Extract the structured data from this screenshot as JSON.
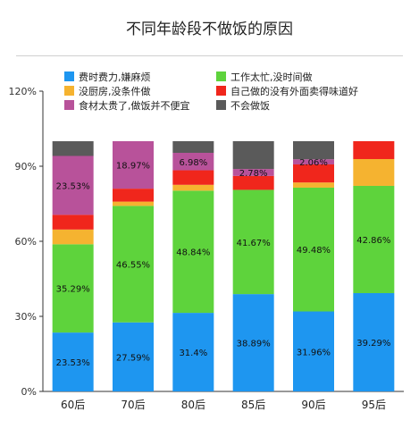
{
  "chart_data": {
    "type": "bar",
    "stacked": true,
    "title": "不同年龄段不做饭的原因",
    "categories": [
      "60后",
      "70后",
      "80后",
      "85后",
      "90后",
      "95后"
    ],
    "y_ticks": [
      "0%",
      "30%",
      "60%",
      "90%",
      "120%"
    ],
    "ylim": [
      0,
      120
    ],
    "grid": false,
    "legend_position": "top",
    "series": [
      {
        "name": "费时费力,嫌麻烦",
        "color": "#1e96f0",
        "values": [
          23.53,
          27.59,
          31.4,
          38.89,
          31.96,
          39.29
        ],
        "labels": [
          "23.53%",
          "27.59%",
          "31.4%",
          "38.89%",
          "31.96%",
          "39.29%"
        ]
      },
      {
        "name": "工作太忙,没时间做",
        "color": "#5ed33c",
        "values": [
          35.29,
          46.55,
          48.84,
          41.67,
          49.48,
          42.86
        ],
        "labels": [
          "35.29%",
          "46.55%",
          "48.84%",
          "41.67%",
          "49.48%",
          "42.86%"
        ]
      },
      {
        "name": "没厨房,没条件做",
        "color": "#f5b330",
        "values": [
          5.88,
          1.72,
          2.33,
          0,
          2.06,
          10.71
        ],
        "labels": [
          "",
          "",
          "",
          "",
          "",
          ""
        ]
      },
      {
        "name": "自己做的没有外面卖得味道好",
        "color": "#f0261c",
        "values": [
          5.88,
          5.17,
          5.81,
          5.56,
          7.22,
          7.14
        ],
        "labels": [
          "",
          "",
          "",
          "",
          "",
          ""
        ]
      },
      {
        "name": "食材太贵了,做饭并不便宜",
        "color": "#b8529a",
        "values": [
          23.53,
          18.97,
          6.98,
          2.78,
          2.06,
          0
        ],
        "labels": [
          "23.53%",
          "18.97%",
          "6.98%",
          "2.78%",
          "2.06%",
          ""
        ]
      },
      {
        "name": "不会做饭",
        "color": "#5a5a5a",
        "values": [
          5.88,
          0,
          4.65,
          11.11,
          7.22,
          0
        ],
        "labels": [
          "",
          "",
          "",
          "",
          "",
          ""
        ]
      }
    ]
  }
}
